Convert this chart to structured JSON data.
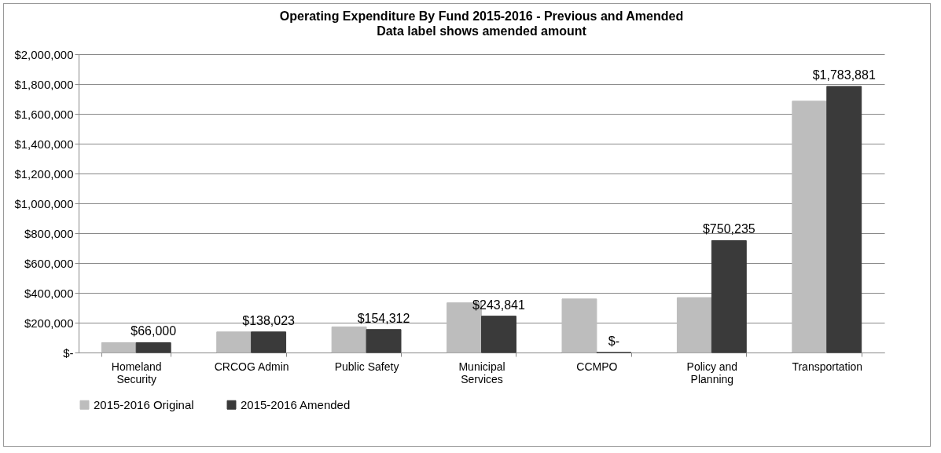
{
  "chart_data": {
    "type": "bar",
    "title": "Operating Expenditure By Fund 2015-2016 - Previous and Amended",
    "subtitle": "Data label shows amended amount",
    "categories": [
      "Homeland Security",
      "CRCOG Admin",
      "Public Safety",
      "Municipal Services",
      "CCMPO",
      "Policy and Planning",
      "Transportation"
    ],
    "series": [
      {
        "name": "2015-2016 Original",
        "color": "#bdbdbd",
        "values": [
          66000,
          138000,
          172000,
          333000,
          359000,
          368000,
          1685000
        ]
      },
      {
        "name": "2015-2016 Amended",
        "color": "#3a3a3a",
        "values": [
          66000,
          138023,
          154312,
          243841,
          0,
          750235,
          1783881
        ],
        "value_labels": [
          "$66,000",
          "$138,023",
          "$154,312",
          "$243,841",
          "$-",
          "$750,235",
          "$1,783,881"
        ]
      }
    ],
    "ylim": [
      0,
      2000000
    ],
    "yticks": [
      {
        "value": 0,
        "label": "$-"
      },
      {
        "value": 200000,
        "label": "$200,000"
      },
      {
        "value": 400000,
        "label": "$400,000"
      },
      {
        "value": 600000,
        "label": "$600,000"
      },
      {
        "value": 800000,
        "label": "$800,000"
      },
      {
        "value": 1000000,
        "label": "$1,000,000"
      },
      {
        "value": 1200000,
        "label": "$1,200,000"
      },
      {
        "value": 1400000,
        "label": "$1,400,000"
      },
      {
        "value": 1600000,
        "label": "$1,600,000"
      },
      {
        "value": 1800000,
        "label": "$1,800,000"
      },
      {
        "value": 2000000,
        "label": "$2,000,000"
      }
    ],
    "grid": "y",
    "legend": "bottom"
  }
}
